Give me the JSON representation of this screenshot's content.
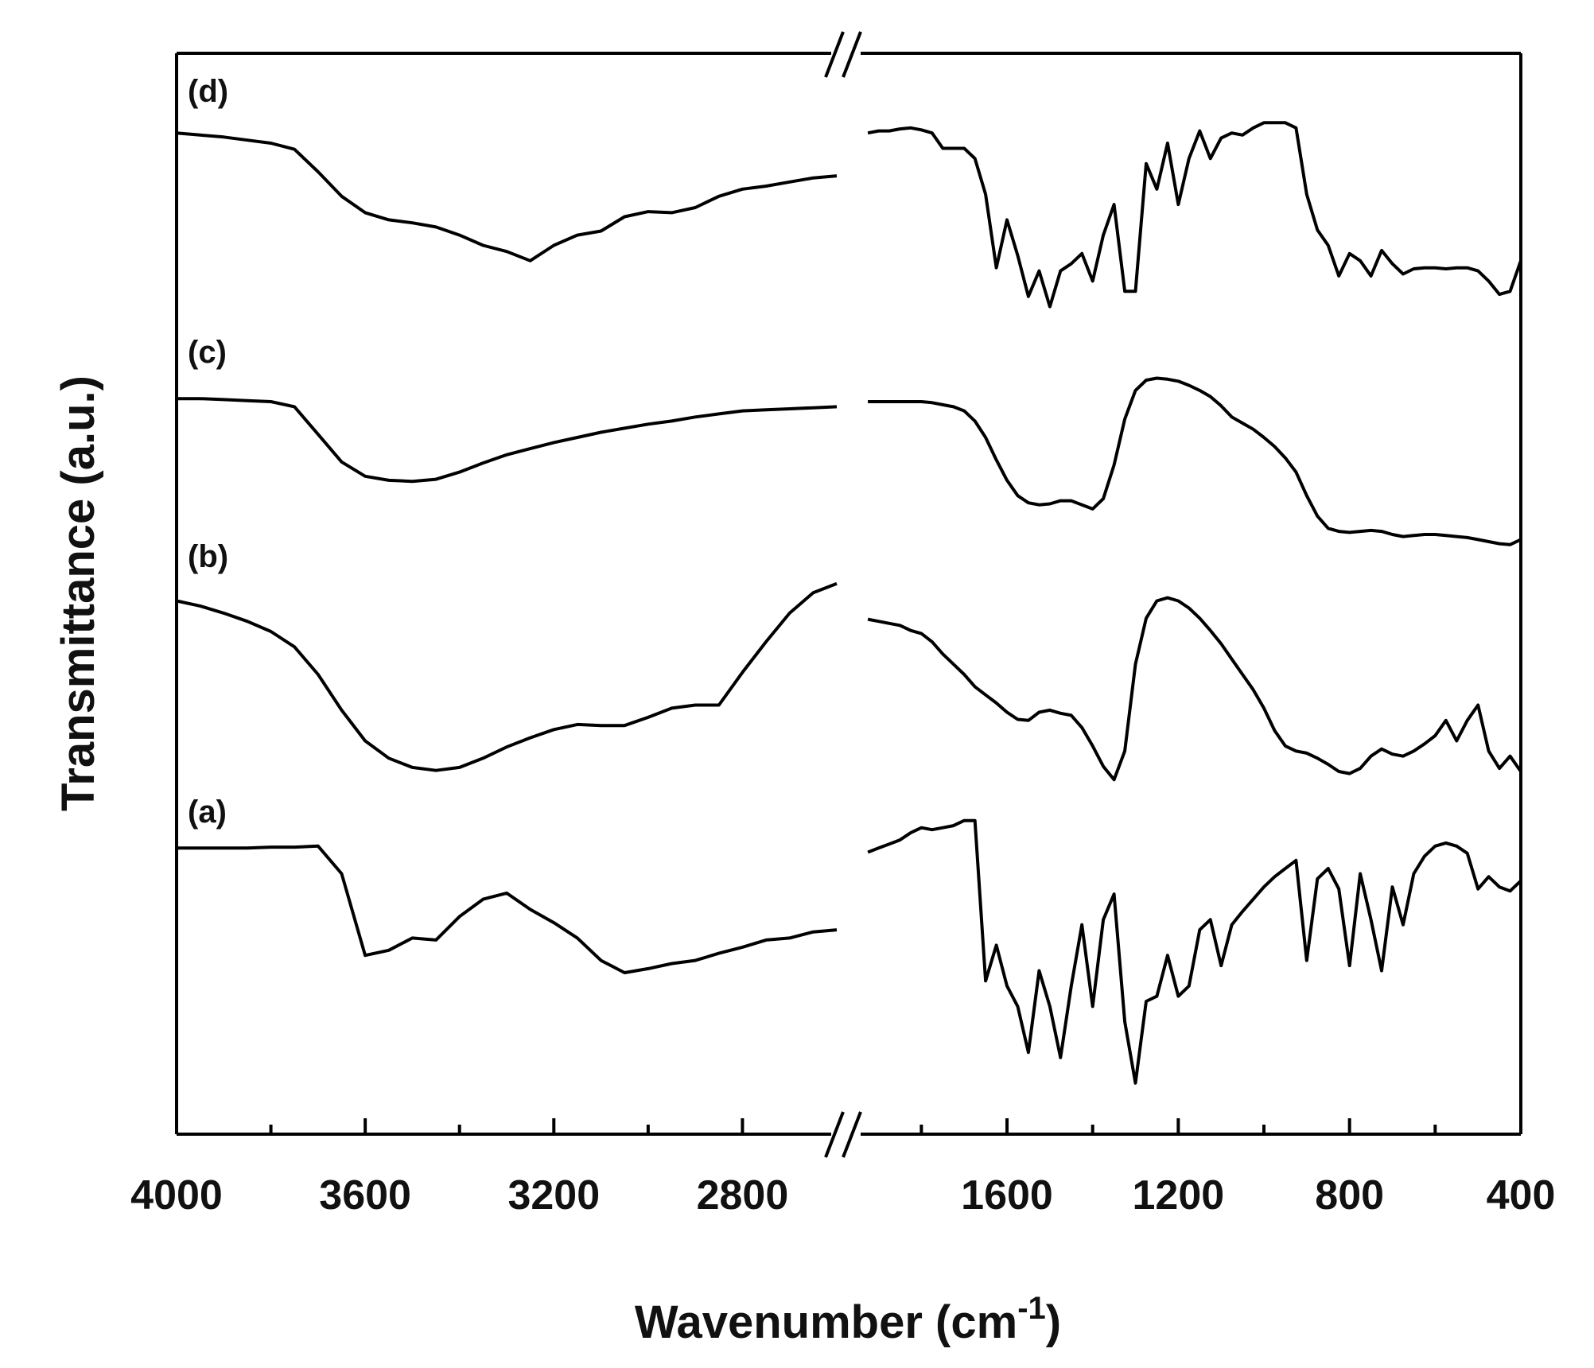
{
  "chart_data": {
    "type": "line",
    "x_label": [
      "Wavenumber (cm",
      "-1",
      ")"
    ],
    "y_label": "Transmittance (a.u.)",
    "xlim": [
      [
        4000,
        2600
      ],
      [
        1940,
        400
      ]
    ],
    "xticks": [
      [
        4000,
        3600,
        3200,
        2800
      ],
      [
        1600,
        1200,
        800,
        400
      ]
    ],
    "minor_xticks": [
      [
        3800,
        3400,
        3000
      ],
      [
        1800,
        1400,
        1000,
        600
      ]
    ],
    "ylim": [
      0,
      105.8
    ],
    "x": [
      4000,
      3950,
      3900,
      3850,
      3800,
      3750,
      3700,
      3650,
      3600,
      3550,
      3500,
      3450,
      3400,
      3350,
      3300,
      3250,
      3200,
      3150,
      3100,
      3050,
      3000,
      2950,
      2900,
      2850,
      2800,
      2750,
      2700,
      2650,
      2600,
      null,
      1925,
      1900,
      1875,
      1850,
      1825,
      1800,
      1775,
      1750,
      1725,
      1700,
      1675,
      1650,
      1625,
      1600,
      1575,
      1550,
      1525,
      1500,
      1475,
      1450,
      1425,
      1400,
      1375,
      1350,
      1325,
      1300,
      1275,
      1250,
      1225,
      1200,
      1175,
      1150,
      1125,
      1100,
      1075,
      1050,
      1025,
      1000,
      975,
      950,
      925,
      900,
      875,
      850,
      825,
      800,
      775,
      750,
      725,
      700,
      675,
      650,
      625,
      600,
      575,
      550,
      525,
      500,
      475,
      450,
      425,
      400
    ],
    "series": [
      {
        "name": "(a)",
        "color": "#000000",
        "values": [
          28,
          28,
          28,
          28,
          28.1,
          28.1,
          28.2,
          25.5,
          17.5,
          18,
          19.2,
          19,
          21.3,
          23,
          23.6,
          22,
          20.7,
          19.2,
          17,
          15.8,
          16.2,
          16.7,
          17,
          17.7,
          18.3,
          19,
          19.2,
          19.8,
          20,
          null,
          27.6,
          28,
          28.4,
          28.8,
          29.5,
          30,
          29.8,
          30,
          30.2,
          30.7,
          30.7,
          15,
          18.5,
          14.5,
          12.5,
          8,
          16,
          12.5,
          7.5,
          14.5,
          20.5,
          12.5,
          21,
          23.5,
          11,
          5,
          13,
          13.5,
          17.5,
          13.5,
          14.5,
          20,
          21,
          16.5,
          20.5,
          21.8,
          23,
          24.2,
          25.2,
          26,
          26.8,
          17,
          25,
          26,
          24,
          16.5,
          25.5,
          21,
          16,
          24.2,
          20.5,
          25.5,
          27.2,
          28.2,
          28.5,
          28.2,
          27.5,
          24,
          25.2,
          24.2,
          23.8,
          24.8
        ]
      },
      {
        "name": "(b)",
        "color": "#000000",
        "values": [
          52.2,
          51.7,
          51,
          50.2,
          49.2,
          47.7,
          45,
          41.5,
          38.5,
          36.8,
          35.9,
          35.6,
          35.9,
          36.8,
          37.9,
          38.8,
          39.6,
          40.1,
          40,
          40,
          40.8,
          41.7,
          42,
          42,
          45.2,
          48.2,
          51,
          53,
          53.9,
          null,
          50.4,
          50.2,
          50,
          49.8,
          49.3,
          49,
          48.2,
          47,
          46,
          45,
          43.8,
          43,
          42.2,
          41.3,
          40.6,
          40.5,
          41.3,
          41.5,
          41.2,
          41,
          39.8,
          38,
          36,
          34.7,
          37.5,
          46,
          50.5,
          52.2,
          52.5,
          52.2,
          51.5,
          50.5,
          49.3,
          48,
          46.5,
          45,
          43.5,
          41.7,
          39.5,
          38,
          37.5,
          37.3,
          36.8,
          36.2,
          35.5,
          35.3,
          35.8,
          37,
          37.7,
          37.2,
          37,
          37.5,
          38.2,
          39,
          40.5,
          38.5,
          40.5,
          42,
          37.5,
          35.8,
          37,
          35.5
        ]
      },
      {
        "name": "(c)",
        "color": "#000000",
        "values": [
          72,
          72,
          71.9,
          71.8,
          71.7,
          71.2,
          68.5,
          65.8,
          64.4,
          64,
          63.9,
          64.1,
          64.8,
          65.7,
          66.5,
          67.1,
          67.7,
          68.2,
          68.7,
          69.1,
          69.5,
          69.8,
          70.2,
          70.5,
          70.8,
          70.9,
          71,
          71.1,
          71.2,
          null,
          71.7,
          71.7,
          71.7,
          71.7,
          71.7,
          71.7,
          71.6,
          71.4,
          71.2,
          70.8,
          69.8,
          68.2,
          66,
          64,
          62.5,
          61.8,
          61.6,
          61.7,
          62,
          62,
          61.6,
          61.2,
          62.2,
          65.5,
          70,
          72.8,
          73.8,
          74,
          73.9,
          73.7,
          73.3,
          72.8,
          72.2,
          71.3,
          70.2,
          69.6,
          69,
          68.2,
          67.3,
          66.2,
          64.8,
          62.5,
          60.5,
          59.3,
          59,
          58.9,
          59,
          59.1,
          59,
          58.7,
          58.5,
          58.6,
          58.7,
          58.7,
          58.6,
          58.5,
          58.4,
          58.2,
          58,
          57.8,
          57.7,
          58.2
        ]
      },
      {
        "name": "(d)",
        "color": "#000000",
        "values": [
          98,
          97.8,
          97.6,
          97.3,
          97,
          96.4,
          94.2,
          91.8,
          90.2,
          89.5,
          89.2,
          88.8,
          88,
          87,
          86.4,
          85.5,
          87,
          88,
          88.4,
          89.8,
          90.3,
          90.2,
          90.7,
          91.8,
          92.5,
          92.8,
          93.2,
          93.6,
          93.8,
          null,
          98,
          98.2,
          98.2,
          98.4,
          98.5,
          98.3,
          98,
          96.5,
          96.5,
          96.5,
          95.5,
          92,
          84.8,
          89.5,
          86,
          82,
          84.5,
          81,
          84.5,
          85.2,
          86.2,
          83.5,
          88,
          91,
          82.5,
          82.5,
          95,
          92.5,
          97,
          91,
          95.5,
          98.2,
          95.5,
          97.5,
          98,
          97.8,
          98.5,
          99,
          99,
          99,
          98.5,
          92,
          88.5,
          87,
          84,
          86.2,
          85.5,
          84,
          86.5,
          85.2,
          84.2,
          84.7,
          84.8,
          84.8,
          84.7,
          84.8,
          84.8,
          84.5,
          83.5,
          82.2,
          82.5,
          85.5
        ]
      }
    ]
  }
}
